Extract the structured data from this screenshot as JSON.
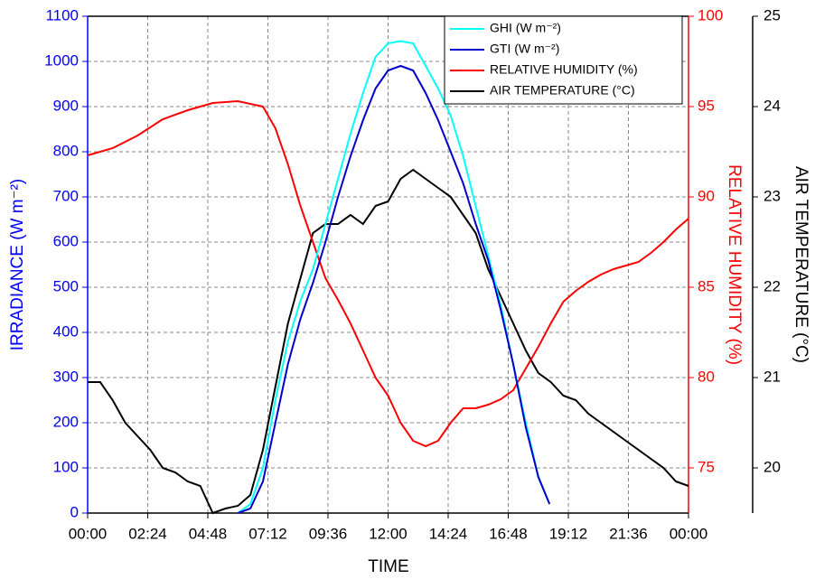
{
  "chart_data": {
    "type": "line",
    "xlabel": "TIME",
    "ylabel": "IRRADIANCE (W m⁻²)",
    "y2label": "RELATIVE HUMIDITY (%)",
    "y3label": "AIR TEMPERATURE (°C)",
    "xlim": [
      0,
      1440
    ],
    "xticks": [
      {
        "value": 0,
        "label": "00:00"
      },
      {
        "value": 144,
        "label": "02:24"
      },
      {
        "value": 288,
        "label": "04:48"
      },
      {
        "value": 432,
        "label": "07:12"
      },
      {
        "value": 576,
        "label": "09:36"
      },
      {
        "value": 720,
        "label": "12:00"
      },
      {
        "value": 864,
        "label": "14:24"
      },
      {
        "value": 1008,
        "label": "16:48"
      },
      {
        "value": 1152,
        "label": "19:12"
      },
      {
        "value": 1296,
        "label": "21:36"
      },
      {
        "value": 1440,
        "label": "00:00"
      }
    ],
    "ylim": [
      0,
      1100
    ],
    "yticks": [
      0,
      100,
      200,
      300,
      400,
      500,
      600,
      700,
      800,
      900,
      1000,
      1100
    ],
    "y2lim": [
      72.5,
      100
    ],
    "y2ticks": [
      75,
      80,
      85,
      90,
      95,
      100
    ],
    "y3lim": [
      19.5,
      25
    ],
    "y3ticks": [
      20,
      21,
      22,
      23,
      24,
      25
    ],
    "grid": true,
    "legend": "upper right",
    "series": [
      {
        "name": "GHI (W m⁻²)",
        "color": "#00ffff",
        "axis": "y",
        "x": [
          360,
          390,
          420,
          450,
          480,
          510,
          540,
          570,
          600,
          630,
          660,
          690,
          720,
          750,
          780,
          810,
          840,
          870,
          900,
          930,
          960,
          990,
          1020,
          1050,
          1080,
          1107
        ],
        "values": [
          0,
          20,
          100,
          250,
          380,
          470,
          540,
          640,
          740,
          840,
          930,
          1010,
          1040,
          1045,
          1040,
          990,
          940,
          880,
          790,
          680,
          570,
          460,
          330,
          200,
          80,
          20
        ]
      },
      {
        "name": "GTI (W m⁻²)",
        "color": "#0000cc",
        "axis": "y",
        "x": [
          360,
          390,
          420,
          450,
          480,
          510,
          540,
          570,
          600,
          630,
          660,
          690,
          720,
          750,
          780,
          810,
          840,
          870,
          900,
          930,
          960,
          990,
          1020,
          1050,
          1080,
          1107
        ],
        "values": [
          0,
          10,
          70,
          200,
          330,
          430,
          510,
          600,
          700,
          790,
          870,
          940,
          980,
          990,
          980,
          930,
          870,
          800,
          730,
          640,
          560,
          450,
          330,
          190,
          80,
          20
        ]
      },
      {
        "name": "RELATIVE HUMIDITY (%)",
        "color": "#ff0000",
        "axis": "y2",
        "x": [
          0,
          60,
          120,
          180,
          240,
          300,
          360,
          420,
          450,
          480,
          510,
          540,
          570,
          600,
          630,
          660,
          690,
          720,
          750,
          780,
          810,
          840,
          870,
          900,
          930,
          960,
          990,
          1020,
          1050,
          1080,
          1110,
          1140,
          1170,
          1200,
          1230,
          1260,
          1290,
          1320,
          1350,
          1380,
          1410,
          1440
        ],
        "values": [
          92.3,
          92.7,
          93.4,
          94.3,
          94.8,
          95.2,
          95.3,
          95.0,
          93.8,
          91.8,
          89.5,
          87.5,
          85.5,
          84.3,
          83,
          81.5,
          80,
          79,
          77.5,
          76.5,
          76.2,
          76.5,
          77.5,
          78.3,
          78.3,
          78.5,
          78.8,
          79.3,
          80.5,
          81.7,
          83,
          84.2,
          84.8,
          85.3,
          85.7,
          86,
          86.2,
          86.4,
          86.9,
          87.5,
          88.2,
          88.8
        ]
      },
      {
        "name": "AIR TEMPERATURE (°C)",
        "color": "#000000",
        "axis": "y3",
        "x": [
          0,
          30,
          60,
          90,
          120,
          150,
          180,
          210,
          240,
          270,
          300,
          330,
          360,
          390,
          420,
          450,
          480,
          510,
          540,
          570,
          600,
          630,
          660,
          690,
          720,
          750,
          780,
          810,
          840,
          870,
          900,
          930,
          960,
          990,
          1020,
          1050,
          1080,
          1110,
          1140,
          1170,
          1200,
          1230,
          1260,
          1290,
          1320,
          1350,
          1380,
          1410,
          1440
        ],
        "values": [
          20.95,
          20.95,
          20.75,
          20.5,
          20.35,
          20.2,
          20.0,
          19.95,
          19.85,
          19.8,
          19.5,
          19.55,
          19.58,
          19.7,
          20.2,
          20.9,
          21.6,
          22.1,
          22.6,
          22.7,
          22.7,
          22.8,
          22.7,
          22.9,
          22.95,
          23.2,
          23.3,
          23.2,
          23.1,
          23.0,
          22.8,
          22.6,
          22.2,
          21.9,
          21.6,
          21.3,
          21.05,
          20.95,
          20.8,
          20.75,
          20.6,
          20.5,
          20.4,
          20.3,
          20.2,
          20.1,
          20.0,
          19.85,
          19.8
        ]
      }
    ]
  }
}
